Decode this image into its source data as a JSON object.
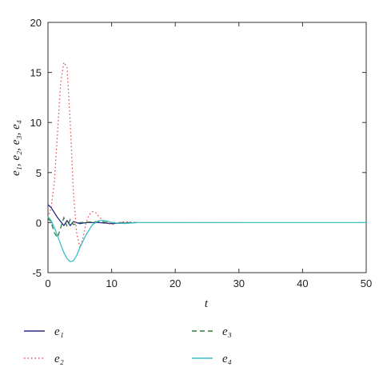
{
  "chart_data": {
    "type": "line",
    "x_label": "t",
    "y_label": "e₁, e₂, e₃, e₄",
    "xlim": [
      0,
      50
    ],
    "xticks": [
      0,
      10,
      20,
      30,
      40,
      50
    ],
    "ylim": [
      -5,
      20
    ],
    "yticks": [
      -5,
      0,
      5,
      10,
      15,
      20
    ],
    "grid": false,
    "legend": "bottom",
    "series": [
      {
        "name": "e₁",
        "color": "#2a2a8a",
        "style": "solid",
        "x": [
          0,
          0.5,
          1,
          1.5,
          2,
          2.5,
          3,
          3.5,
          4,
          5,
          6,
          8,
          10,
          14
        ],
        "values": [
          1.8,
          1.5,
          1.0,
          0.5,
          0.1,
          -0.3,
          0.2,
          -0.3,
          0.1,
          -0.1,
          0,
          0,
          -0.1,
          0
        ]
      },
      {
        "name": "e₂",
        "color": "#e0504f",
        "style": "dotted",
        "x": [
          0,
          0.5,
          1,
          1.5,
          2,
          2.5,
          3,
          3.5,
          4,
          4.5,
          5,
          5.5,
          6,
          6.5,
          7,
          7.5,
          8,
          9,
          10,
          12,
          14,
          20,
          30
        ],
        "values": [
          0.5,
          1.5,
          4,
          9,
          14,
          16,
          15.5,
          10,
          3,
          -1,
          -2.5,
          -1.5,
          0,
          0.8,
          1.1,
          1,
          0.6,
          0,
          -0.2,
          0.1,
          0,
          0,
          0
        ]
      },
      {
        "name": "e₃",
        "color": "#2e7d3a",
        "style": "dashed",
        "x": [
          0,
          0.5,
          1,
          1.5,
          2,
          2.5,
          3,
          3.5,
          4,
          5,
          8,
          10,
          14
        ],
        "values": [
          0.5,
          0,
          -1,
          -1.5,
          -0.5,
          0.5,
          -0.4,
          0.3,
          -0.2,
          0,
          0.1,
          0,
          0
        ]
      },
      {
        "name": "e₄",
        "color": "#3bbfc8",
        "style": "solid",
        "x": [
          0,
          0.5,
          1,
          1.5,
          2,
          2.5,
          3,
          3.5,
          4,
          4.5,
          5,
          6,
          7,
          8,
          9,
          10,
          12,
          14,
          20,
          30,
          40,
          50
        ],
        "values": [
          0.6,
          0.2,
          -0.5,
          -1.3,
          -2.2,
          -3,
          -3.6,
          -3.9,
          -3.8,
          -3.3,
          -2.5,
          -1.2,
          -0.2,
          0.2,
          0.2,
          0,
          -0.1,
          0,
          0,
          0,
          0,
          0
        ]
      }
    ]
  }
}
